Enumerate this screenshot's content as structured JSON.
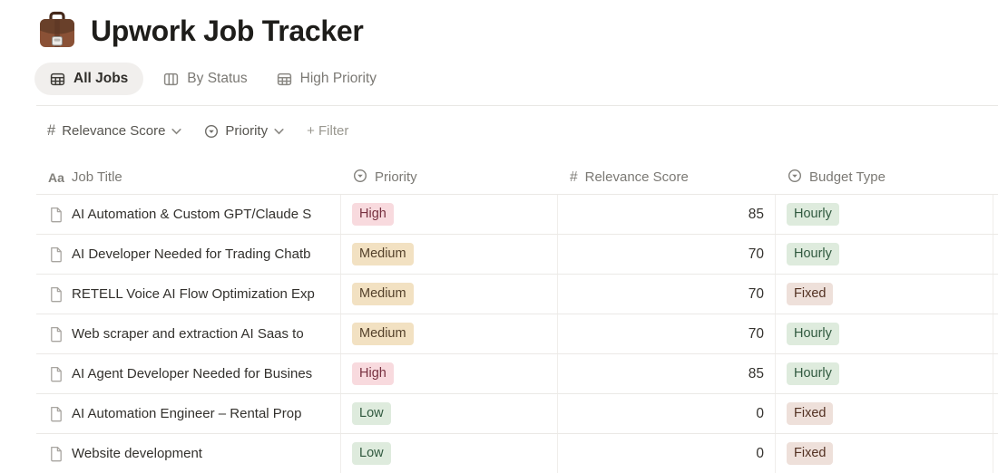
{
  "page": {
    "title": "Upwork Job Tracker",
    "icon": "briefcase"
  },
  "tabs": [
    {
      "label": "All Jobs",
      "icon": "table-view-icon",
      "active": true
    },
    {
      "label": "By Status",
      "icon": "board-view-icon",
      "active": false
    },
    {
      "label": "High Priority",
      "icon": "table-view-icon",
      "active": false
    }
  ],
  "filter_bar": {
    "sorts": [
      {
        "label": "Relevance Score",
        "icon": "number-icon"
      },
      {
        "label": "Priority",
        "icon": "select-icon"
      }
    ],
    "add_filter_label": "+ Filter"
  },
  "table": {
    "columns": [
      {
        "label": "Job Title",
        "icon": "title-icon",
        "glyph": "Aa"
      },
      {
        "label": "Priority",
        "icon": "select-icon"
      },
      {
        "label": "Relevance Score",
        "icon": "number-icon",
        "glyph": "#"
      },
      {
        "label": "Budget Type",
        "icon": "select-icon"
      }
    ],
    "rows": [
      {
        "title": "AI Automation & Custom GPT/Claude S",
        "priority": "High",
        "relevance_score": "85",
        "budget_type": "Hourly"
      },
      {
        "title": "AI Developer Needed for Trading Chatb",
        "priority": "Medium",
        "relevance_score": "70",
        "budget_type": "Hourly"
      },
      {
        "title": "RETELL Voice AI Flow Optimization Exp",
        "priority": "Medium",
        "relevance_score": "70",
        "budget_type": "Fixed"
      },
      {
        "title": "Web scraper and extraction AI Saas to",
        "priority": "Medium",
        "relevance_score": "70",
        "budget_type": "Hourly"
      },
      {
        "title": "AI Agent Developer Needed for Busines",
        "priority": "High",
        "relevance_score": "85",
        "budget_type": "Hourly"
      },
      {
        "title": "AI Automation Engineer – Rental Prop",
        "priority": "Low",
        "relevance_score": "0",
        "budget_type": "Fixed"
      },
      {
        "title": "Website development",
        "priority": "Low",
        "relevance_score": "0",
        "budget_type": "Fixed"
      }
    ]
  },
  "tag_colors": {
    "High": {
      "bg": "#f8dade",
      "text": "#77303f"
    },
    "Medium": {
      "bg": "#f2e1c2",
      "text": "#53402a"
    },
    "Low": {
      "bg": "#deebdd",
      "text": "#30593f"
    },
    "Hourly": {
      "bg": "#deebdd",
      "text": "#30593f"
    },
    "Fixed": {
      "bg": "#eee0da",
      "text": "#533122"
    }
  },
  "colors": {
    "active_tab_bg": "#f1efed",
    "divider": "#e9e8e5",
    "row_border": "#ebe9e6",
    "column_border": "#f0eeeb",
    "muted_text": "#7b7974"
  }
}
